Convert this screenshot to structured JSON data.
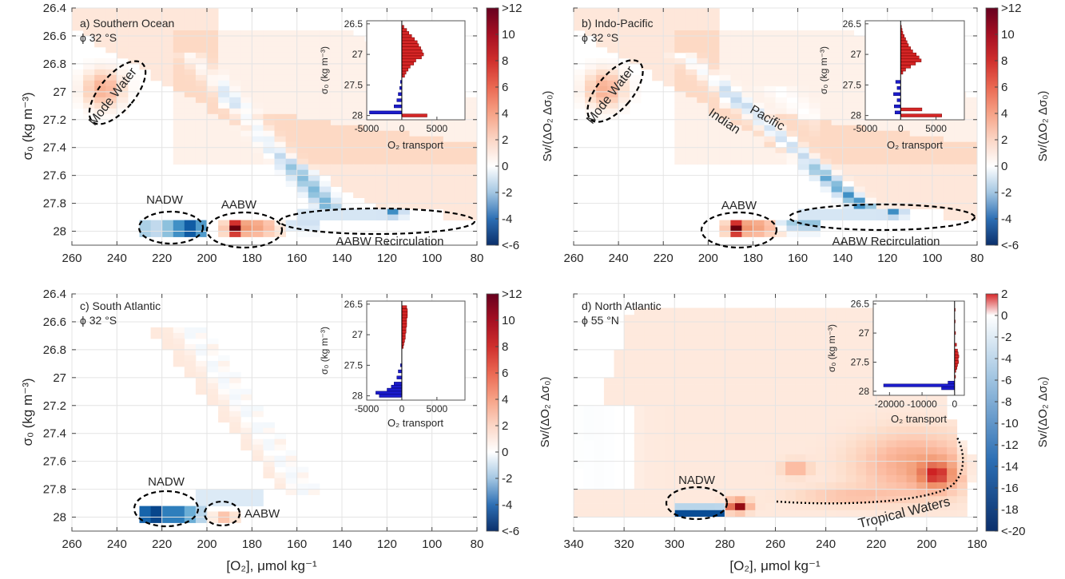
{
  "figure": {
    "xlabel_left": "[O₂], μmol kg⁻¹",
    "xlabel_right": "[O₂], μmol kg⁻¹",
    "ylabel": "σ₀ (kg m⁻³)",
    "cbar_label": "Sv/(ΔO₂ Δσ₀)",
    "inset_xlabel": "O₂ transport",
    "inset_ylabel": "σ₀ (kg m⁻³)"
  },
  "chart_data": [
    {
      "type": "heatmap",
      "panel": "a",
      "title": "a) Southern Ocean",
      "subtitle": "ϕ 32 °S",
      "x_ticks": [
        260,
        240,
        220,
        200,
        180,
        160,
        140,
        120,
        100,
        80
      ],
      "y_ticks": [
        26.4,
        26.6,
        26.8,
        27,
        27.2,
        27.4,
        27.6,
        27.8,
        28
      ],
      "xlim": [
        260,
        80
      ],
      "ylim": [
        28.1,
        26.4
      ],
      "colorbar": {
        "min": -6,
        "max": 12,
        "ticks": [
          "<-6",
          "-4",
          "-2",
          "0",
          "2",
          "4",
          "6",
          "8",
          "10",
          ">12"
        ]
      },
      "annotations": [
        {
          "text": "Mode Water",
          "x": 238,
          "y": 26.98
        },
        {
          "text": "NADW",
          "x": 214,
          "y": 27.78
        },
        {
          "text": "AABW",
          "x": 183,
          "y": 27.78
        },
        {
          "text": "AABW Recirculation",
          "x": 124,
          "y": 28.04
        }
      ],
      "inset": {
        "xlim": [
          -5000,
          9000
        ],
        "ylim": [
          28.07,
          26.45
        ],
        "x_ticks": [
          -5000,
          0,
          5000
        ],
        "y_ticks": [
          26.5,
          27,
          27.5,
          28
        ],
        "bins": [
          {
            "s": 26.55,
            "v": 300
          },
          {
            "s": 26.6,
            "v": 700
          },
          {
            "s": 26.65,
            "v": 1000
          },
          {
            "s": 26.7,
            "v": 1400
          },
          {
            "s": 26.75,
            "v": 1800
          },
          {
            "s": 26.8,
            "v": 2200
          },
          {
            "s": 26.85,
            "v": 2400
          },
          {
            "s": 26.9,
            "v": 2700
          },
          {
            "s": 26.95,
            "v": 2900
          },
          {
            "s": 27.0,
            "v": 3100
          },
          {
            "s": 27.05,
            "v": 2800
          },
          {
            "s": 27.1,
            "v": 2000
          },
          {
            "s": 27.15,
            "v": 1700
          },
          {
            "s": 27.2,
            "v": 1200
          },
          {
            "s": 27.25,
            "v": 900
          },
          {
            "s": 27.3,
            "v": 600
          },
          {
            "s": 27.35,
            "v": 400
          },
          {
            "s": 27.45,
            "v": -200
          },
          {
            "s": 27.55,
            "v": -300
          },
          {
            "s": 27.65,
            "v": -500
          },
          {
            "s": 27.75,
            "v": -700
          },
          {
            "s": 27.85,
            "v": -1100
          },
          {
            "s": 27.95,
            "v": -4600
          },
          {
            "s": 28.0,
            "v": 3600
          }
        ]
      }
    },
    {
      "type": "heatmap",
      "panel": "b",
      "title": "b) Indo-Pacific",
      "subtitle": "ϕ 32 °S",
      "x_ticks": [
        260,
        240,
        220,
        200,
        180,
        160,
        140,
        120,
        100,
        80
      ],
      "y_ticks": [
        26.4,
        26.6,
        26.8,
        27,
        27.2,
        27.4,
        27.6,
        27.8,
        28
      ],
      "xlim": [
        260,
        80
      ],
      "ylim": [
        28.1,
        26.4
      ],
      "colorbar": {
        "min": -6,
        "max": 12,
        "ticks": [
          "<-6",
          "-4",
          "-2",
          "0",
          "2",
          "4",
          "6",
          "8",
          "10",
          ">12"
        ]
      },
      "annotations": [
        {
          "text": "Mode Water",
          "x": 238,
          "y": 26.98
        },
        {
          "text": "Indian",
          "x": 190,
          "y": 27.19
        },
        {
          "text": "Pacific",
          "x": 160,
          "y": 27.17
        },
        {
          "text": "AABW",
          "x": 185,
          "y": 27.78
        },
        {
          "text": "AABW Recirculation",
          "x": 120,
          "y": 28.04
        }
      ],
      "inset": {
        "xlim": [
          -5000,
          9000
        ],
        "ylim": [
          28.07,
          26.45
        ],
        "x_ticks": [
          -5000,
          0,
          5000
        ],
        "y_ticks": [
          26.5,
          27,
          27.5,
          28
        ],
        "bins": [
          {
            "s": 26.55,
            "v": 100
          },
          {
            "s": 26.6,
            "v": 200
          },
          {
            "s": 26.65,
            "v": 300
          },
          {
            "s": 26.7,
            "v": 500
          },
          {
            "s": 26.75,
            "v": 700
          },
          {
            "s": 26.8,
            "v": 900
          },
          {
            "s": 26.85,
            "v": 1100
          },
          {
            "s": 26.9,
            "v": 1400
          },
          {
            "s": 26.95,
            "v": 1700
          },
          {
            "s": 27.0,
            "v": 2200
          },
          {
            "s": 27.05,
            "v": 2600
          },
          {
            "s": 27.1,
            "v": 2900
          },
          {
            "s": 27.15,
            "v": 2100
          },
          {
            "s": 27.2,
            "v": 1400
          },
          {
            "s": 27.25,
            "v": 700
          },
          {
            "s": 27.3,
            "v": 300
          },
          {
            "s": 27.45,
            "v": -700
          },
          {
            "s": 27.55,
            "v": -500
          },
          {
            "s": 27.65,
            "v": -1000
          },
          {
            "s": 27.75,
            "v": -500
          },
          {
            "s": 27.85,
            "v": -900
          },
          {
            "s": 27.9,
            "v": 3000
          },
          {
            "s": 27.95,
            "v": -800
          },
          {
            "s": 28.0,
            "v": 5800
          }
        ]
      }
    },
    {
      "type": "heatmap",
      "panel": "c",
      "title": "c) South Atlantic",
      "subtitle": "ϕ 32 °S",
      "x_ticks": [
        260,
        240,
        220,
        200,
        180,
        160,
        140,
        120,
        100,
        80
      ],
      "y_ticks": [
        26.4,
        26.6,
        26.8,
        27,
        27.2,
        27.4,
        27.6,
        27.8,
        28
      ],
      "xlim": [
        260,
        80
      ],
      "ylim": [
        28.1,
        26.4
      ],
      "colorbar": {
        "min": -6,
        "max": 12,
        "ticks": [
          "<-6",
          "-4",
          "-2",
          "0",
          "2",
          "4",
          "6",
          "8",
          "10",
          ">12"
        ]
      },
      "annotations": [
        {
          "text": "NADW",
          "x": 216,
          "y": 27.78
        },
        {
          "text": "AABW",
          "x": 176,
          "y": 27.99
        }
      ],
      "inset": {
        "xlim": [
          -5000,
          9000
        ],
        "ylim": [
          28.07,
          26.45
        ],
        "x_ticks": [
          -5000,
          0,
          5000
        ],
        "y_ticks": [
          26.5,
          27,
          27.5,
          28
        ],
        "bins": [
          {
            "s": 26.55,
            "v": 700
          },
          {
            "s": 26.6,
            "v": 800
          },
          {
            "s": 26.65,
            "v": 800
          },
          {
            "s": 26.7,
            "v": 800
          },
          {
            "s": 26.75,
            "v": 700
          },
          {
            "s": 26.8,
            "v": 700
          },
          {
            "s": 26.85,
            "v": 700
          },
          {
            "s": 26.9,
            "v": 600
          },
          {
            "s": 26.95,
            "v": 600
          },
          {
            "s": 27.0,
            "v": 500
          },
          {
            "s": 27.05,
            "v": 500
          },
          {
            "s": 27.1,
            "v": 400
          },
          {
            "s": 27.15,
            "v": 300
          },
          {
            "s": 27.2,
            "v": 200
          },
          {
            "s": 27.5,
            "v": -200
          },
          {
            "s": 27.6,
            "v": -500
          },
          {
            "s": 27.7,
            "v": -700
          },
          {
            "s": 27.8,
            "v": -1100
          },
          {
            "s": 27.85,
            "v": -1500
          },
          {
            "s": 27.9,
            "v": -2100
          },
          {
            "s": 27.95,
            "v": -3700
          },
          {
            "s": 28.0,
            "v": -3200
          }
        ]
      }
    },
    {
      "type": "heatmap",
      "panel": "d",
      "title": "d) North Atlantic",
      "subtitle": "ϕ 55 °N",
      "x_ticks": [
        340,
        320,
        300,
        280,
        260,
        240,
        220,
        200,
        180
      ],
      "y_ticks": [
        26.4,
        26.6,
        26.8,
        27,
        27.2,
        27.4,
        27.6,
        27.8,
        28
      ],
      "xlim": [
        340,
        180
      ],
      "ylim": [
        28.1,
        26.4
      ],
      "colorbar": {
        "min": -20,
        "max": 2,
        "ticks": [
          "<-20",
          "-18",
          "-16",
          "-14",
          "-12",
          "-10",
          "-8",
          "-6",
          "-4",
          "-2",
          "0",
          "2"
        ]
      },
      "annotations": [
        {
          "text": "NADW",
          "x": 290,
          "y": 27.85
        },
        {
          "text": "Tropical Waters",
          "x": 235,
          "y": 27.97
        }
      ],
      "inset": {
        "xlim": [
          -25000,
          3000
        ],
        "ylim": [
          28.07,
          26.45
        ],
        "x_ticks": [
          -20000,
          -10000,
          0
        ],
        "y_ticks": [
          26.5,
          27,
          27.5,
          28
        ],
        "bins": [
          {
            "s": 26.6,
            "v": 100
          },
          {
            "s": 26.8,
            "v": 200
          },
          {
            "s": 27.0,
            "v": 300
          },
          {
            "s": 27.2,
            "v": 600
          },
          {
            "s": 27.3,
            "v": 900
          },
          {
            "s": 27.35,
            "v": 1100
          },
          {
            "s": 27.4,
            "v": 1300
          },
          {
            "s": 27.45,
            "v": 1100
          },
          {
            "s": 27.5,
            "v": 1200
          },
          {
            "s": 27.55,
            "v": 900
          },
          {
            "s": 27.6,
            "v": 700
          },
          {
            "s": 27.65,
            "v": 400
          },
          {
            "s": 27.75,
            "v": 300
          },
          {
            "s": 27.85,
            "v": -2000
          },
          {
            "s": 27.9,
            "v": -21800
          },
          {
            "s": 27.95,
            "v": -4000
          }
        ]
      }
    }
  ]
}
